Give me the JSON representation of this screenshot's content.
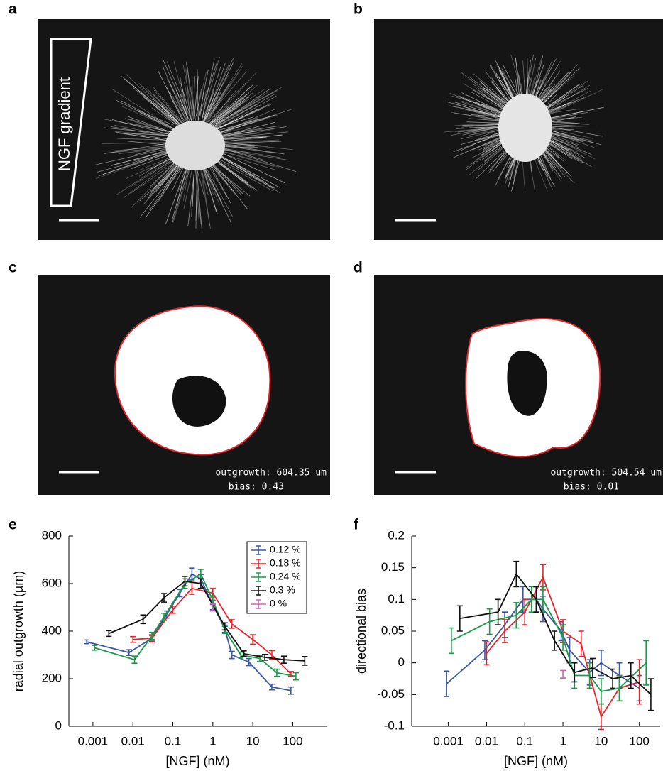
{
  "panel_labels": [
    "a",
    "b",
    "c",
    "d",
    "e",
    "f"
  ],
  "gradient_label": "NGF gradient",
  "image_annotations": [
    {
      "outgrowth": "outgrowth: 604.35 um",
      "bias": "bias: 0.43"
    },
    {
      "outgrowth": "outgrowth: 504.54 um",
      "bias": "bias: 0.01"
    }
  ],
  "chart_data": [
    {
      "type": "line",
      "xscale": "log",
      "xlabel": "[NGF] (nM)",
      "ylabel": "radial outgrowth (µm)",
      "xlim": [
        0.00025,
        700
      ],
      "xticks": [
        0.001,
        0.01,
        0.1,
        1,
        10,
        100
      ],
      "ylim": [
        0,
        800
      ],
      "yticks": [
        0,
        200,
        400,
        600,
        800
      ],
      "legend": "upper right",
      "series": [
        {
          "name": "0.12 %",
          "color": "#3a57a7",
          "x": [
            0.0007,
            0.008,
            0.03,
            0.07,
            0.15,
            0.3,
            0.5,
            1,
            2,
            3,
            8,
            30,
            90
          ],
          "values": [
            355,
            310,
            370,
            470,
            560,
            640,
            620,
            510,
            410,
            300,
            270,
            165,
            150
          ],
          "errors": [
            8,
            12,
            12,
            15,
            15,
            25,
            18,
            20,
            15,
            15,
            15,
            12,
            15
          ]
        },
        {
          "name": "0.18 %",
          "color": "#e3262b",
          "x": [
            0.01,
            0.03,
            0.1,
            0.3,
            1,
            3,
            10,
            30,
            90
          ],
          "values": [
            365,
            370,
            490,
            580,
            560,
            430,
            365,
            300,
            220
          ],
          "errors": [
            12,
            15,
            15,
            25,
            20,
            18,
            20,
            18,
            10
          ]
        },
        {
          "name": "0.24 %",
          "color": "#1a9a48",
          "x": [
            0.0011,
            0.011,
            0.03,
            0.06,
            0.2,
            0.5,
            1,
            2,
            5,
            15,
            40,
            120
          ],
          "values": [
            330,
            280,
            380,
            460,
            600,
            640,
            530,
            405,
            300,
            285,
            225,
            210
          ],
          "errors": [
            10,
            15,
            15,
            15,
            20,
            20,
            18,
            15,
            12,
            12,
            15,
            15
          ]
        },
        {
          "name": "0.3 %",
          "color": "#111111",
          "x": [
            0.0025,
            0.018,
            0.06,
            0.2,
            0.5,
            2,
            6,
            20,
            60,
            200
          ],
          "values": [
            390,
            450,
            540,
            610,
            600,
            420,
            305,
            290,
            280,
            275
          ],
          "errors": [
            12,
            18,
            18,
            20,
            20,
            15,
            12,
            12,
            15,
            18
          ]
        },
        {
          "name": "0 %",
          "color": "#d060b0",
          "x": [
            1
          ],
          "values": [
            500
          ],
          "errors": [
            15
          ]
        }
      ]
    },
    {
      "type": "line",
      "xscale": "log",
      "xlabel": "[NGF] (nM)",
      "ylabel": "directional bias",
      "xlim": [
        0.00011,
        350
      ],
      "xticks": [
        0.001,
        0.01,
        0.1,
        1,
        10,
        100
      ],
      "ylim": [
        -0.1,
        0.2
      ],
      "yticks": [
        -0.1,
        -0.05,
        0,
        0.05,
        0.1,
        0.15,
        0.2
      ],
      "series": [
        {
          "color": "#3a57a7",
          "x": [
            0.0009,
            0.009,
            0.03,
            0.09,
            0.2,
            0.3,
            0.9,
            1.5,
            5,
            10,
            30,
            100
          ],
          "values": [
            -0.033,
            0.02,
            0.06,
            0.1,
            0.1,
            0.085,
            0.05,
            0.02,
            -0.015,
            0.0,
            -0.02,
            -0.04
          ],
          "errors": [
            0.02,
            0.015,
            0.02,
            0.02,
            0.02,
            0.02,
            0.015,
            0.02,
            0.02,
            0.02,
            0.02,
            0.02
          ]
        },
        {
          "color": "#e3262b",
          "x": [
            0.01,
            0.03,
            0.1,
            0.3,
            1,
            3,
            10,
            30,
            100
          ],
          "values": [
            0.015,
            0.05,
            0.08,
            0.135,
            0.05,
            0.03,
            -0.085,
            -0.04,
            -0.03
          ],
          "errors": [
            0.018,
            0.018,
            0.02,
            0.02,
            0.018,
            0.02,
            0.02,
            0.02,
            0.035
          ]
        },
        {
          "color": "#1a9a48",
          "x": [
            0.0012,
            0.012,
            0.06,
            0.15,
            0.3,
            1,
            2,
            5,
            10,
            30,
            150
          ],
          "values": [
            0.035,
            0.065,
            0.075,
            0.1,
            0.1,
            0.04,
            -0.02,
            -0.02,
            -0.045,
            -0.04,
            0.0
          ],
          "errors": [
            0.02,
            0.02,
            0.02,
            0.02,
            0.02,
            0.02,
            0.02,
            0.02,
            0.02,
            0.02,
            0.035
          ]
        },
        {
          "color": "#111111",
          "x": [
            0.002,
            0.02,
            0.06,
            0.2,
            0.6,
            2,
            6,
            20,
            60,
            200
          ],
          "values": [
            0.07,
            0.08,
            0.14,
            0.1,
            0.035,
            -0.015,
            -0.008,
            -0.025,
            -0.02,
            -0.05
          ],
          "errors": [
            0.02,
            0.02,
            0.02,
            0.02,
            0.015,
            0.015,
            0.015,
            0.015,
            0.02,
            0.025
          ]
        },
        {
          "color": "#d060b0",
          "x": [
            1
          ],
          "values": [
            -0.018
          ],
          "errors": [
            0.006
          ]
        }
      ]
    }
  ]
}
